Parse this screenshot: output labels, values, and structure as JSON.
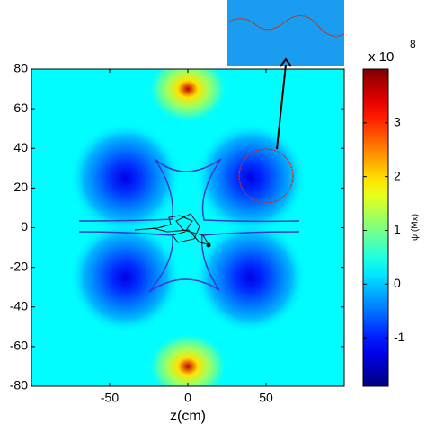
{
  "chart_data": {
    "type": "heatmap",
    "xlabel": "z(cm)",
    "xlim": [
      -100,
      100
    ],
    "xticks": [
      -50,
      0,
      50
    ],
    "ylim": [
      -80,
      80
    ],
    "yticks": [
      -80,
      -60,
      -40,
      -20,
      0,
      20,
      40,
      60,
      80
    ],
    "background_value": 0.3,
    "sources": [
      {
        "x": -40,
        "y": 25,
        "value": -1.3
      },
      {
        "x": 40,
        "y": 25,
        "value": -1.3
      },
      {
        "x": -40,
        "y": -25,
        "value": -1.3
      },
      {
        "x": 40,
        "y": -25,
        "value": -1.3
      },
      {
        "x": 0,
        "y": 70,
        "value": 3.6
      },
      {
        "x": 0,
        "y": -70,
        "value": 3.6
      }
    ],
    "colorbar": {
      "label": "ψ (Mx)",
      "multiplier": "x 10",
      "exponent": 8,
      "clim": [
        -1.9,
        4
      ],
      "ticks": [
        -1,
        0,
        1,
        2,
        3
      ]
    }
  }
}
